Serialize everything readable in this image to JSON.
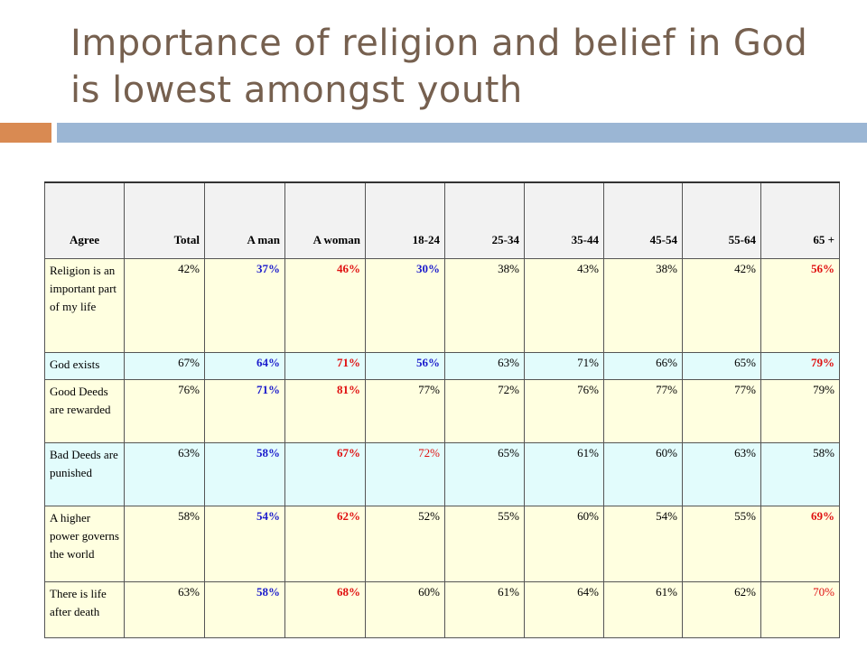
{
  "slide": {
    "title": "Importance of religion and belief in God is lowest amongst youth"
  },
  "table": {
    "headers": [
      "Agree",
      "Total",
      "A man",
      "A woman",
      "18-24",
      "25-34",
      "35-44",
      "45-54",
      "55-64",
      "65 +"
    ],
    "rows": [
      {
        "label": "Religion is an important part of my life",
        "bg": "yellow",
        "cells": [
          {
            "v": "42%",
            "c": "black",
            "b": false
          },
          {
            "v": "37%",
            "c": "blue",
            "b": true
          },
          {
            "v": "46%",
            "c": "red",
            "b": true
          },
          {
            "v": "30%",
            "c": "blue",
            "b": true
          },
          {
            "v": "38%",
            "c": "black",
            "b": false
          },
          {
            "v": "43%",
            "c": "black",
            "b": false
          },
          {
            "v": "38%",
            "c": "black",
            "b": false
          },
          {
            "v": "42%",
            "c": "black",
            "b": false
          },
          {
            "v": "56%",
            "c": "red",
            "b": true
          }
        ]
      },
      {
        "label": "God exists",
        "bg": "cyan",
        "cells": [
          {
            "v": "67%",
            "c": "black",
            "b": false
          },
          {
            "v": "64%",
            "c": "blue",
            "b": true
          },
          {
            "v": "71%",
            "c": "red",
            "b": true
          },
          {
            "v": "56%",
            "c": "blue",
            "b": true
          },
          {
            "v": "63%",
            "c": "black",
            "b": false
          },
          {
            "v": "71%",
            "c": "black",
            "b": false
          },
          {
            "v": "66%",
            "c": "black",
            "b": false
          },
          {
            "v": "65%",
            "c": "black",
            "b": false
          },
          {
            "v": "79%",
            "c": "red",
            "b": true
          }
        ]
      },
      {
        "label": "Good Deeds are rewarded",
        "bg": "yellow",
        "cells": [
          {
            "v": "76%",
            "c": "black",
            "b": false
          },
          {
            "v": "71%",
            "c": "blue",
            "b": true
          },
          {
            "v": "81%",
            "c": "red",
            "b": true
          },
          {
            "v": "77%",
            "c": "black",
            "b": false
          },
          {
            "v": "72%",
            "c": "black",
            "b": false
          },
          {
            "v": "76%",
            "c": "black",
            "b": false
          },
          {
            "v": "77%",
            "c": "black",
            "b": false
          },
          {
            "v": "77%",
            "c": "black",
            "b": false
          },
          {
            "v": "79%",
            "c": "black",
            "b": false
          }
        ]
      },
      {
        "label": "Bad Deeds are punished",
        "bg": "cyan",
        "cells": [
          {
            "v": "63%",
            "c": "black",
            "b": false
          },
          {
            "v": "58%",
            "c": "blue",
            "b": true
          },
          {
            "v": "67%",
            "c": "red",
            "b": true
          },
          {
            "v": "72%",
            "c": "red",
            "b": false
          },
          {
            "v": "65%",
            "c": "black",
            "b": false
          },
          {
            "v": "61%",
            "c": "black",
            "b": false
          },
          {
            "v": "60%",
            "c": "black",
            "b": false
          },
          {
            "v": "63%",
            "c": "black",
            "b": false
          },
          {
            "v": "58%",
            "c": "black",
            "b": false
          }
        ]
      },
      {
        "label": "A higher power governs the world",
        "bg": "yellow",
        "cells": [
          {
            "v": "58%",
            "c": "black",
            "b": false
          },
          {
            "v": "54%",
            "c": "blue",
            "b": true
          },
          {
            "v": "62%",
            "c": "red",
            "b": true
          },
          {
            "v": "52%",
            "c": "black",
            "b": false
          },
          {
            "v": "55%",
            "c": "black",
            "b": false
          },
          {
            "v": "60%",
            "c": "black",
            "b": false
          },
          {
            "v": "54%",
            "c": "black",
            "b": false
          },
          {
            "v": "55%",
            "c": "black",
            "b": false
          },
          {
            "v": "69%",
            "c": "red",
            "b": true
          }
        ]
      },
      {
        "label": "There is life after death",
        "bg": "yellow",
        "cells": [
          {
            "v": "63%",
            "c": "black",
            "b": false
          },
          {
            "v": "58%",
            "c": "blue",
            "b": true
          },
          {
            "v": "68%",
            "c": "red",
            "b": true
          },
          {
            "v": "60%",
            "c": "black",
            "b": false
          },
          {
            "v": "61%",
            "c": "black",
            "b": false
          },
          {
            "v": "64%",
            "c": "black",
            "b": false
          },
          {
            "v": "61%",
            "c": "black",
            "b": false
          },
          {
            "v": "62%",
            "c": "black",
            "b": false
          },
          {
            "v": "70%",
            "c": "red",
            "b": false
          }
        ]
      }
    ]
  },
  "colors": {
    "title": "#76604f",
    "accent_orange": "#d98a52",
    "accent_blue": "#9bb6d4",
    "value_blue": "#1a1acc",
    "value_red": "#e01010",
    "row_yellow": "#ffffe0",
    "row_cyan": "#e2fcfc"
  }
}
